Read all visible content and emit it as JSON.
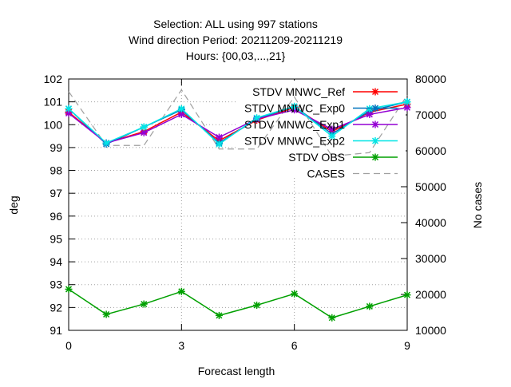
{
  "chart_data": {
    "type": "line",
    "title_lines": [
      "Selection: ALL using   997 stations",
      "Wind direction   Period: 20211209-20211219",
      "Hours: {00,03,...,21}"
    ],
    "xlabel": "Forecast length",
    "ylabel": "deg",
    "y2label": "No cases",
    "xlim": [
      0,
      9
    ],
    "ylim": [
      91,
      102
    ],
    "y2lim": [
      10000,
      80000
    ],
    "xticks": [
      0,
      3,
      6,
      9
    ],
    "yticks": [
      91,
      92,
      93,
      94,
      95,
      96,
      97,
      98,
      99,
      100,
      101,
      102
    ],
    "y2ticks": [
      10000,
      20000,
      30000,
      40000,
      50000,
      60000,
      70000,
      80000
    ],
    "grid": true,
    "legend_position": "top-right",
    "x": [
      0,
      1,
      2,
      3,
      4,
      5,
      6,
      7,
      8,
      9
    ],
    "series": [
      {
        "name": "STDV MNWC_Ref",
        "color": "#ff0000",
        "axis": "left",
        "values": [
          100.55,
          99.2,
          99.7,
          100.55,
          99.3,
          100.2,
          100.75,
          99.7,
          100.55,
          100.9
        ]
      },
      {
        "name": "STDV MNWC_Exp0",
        "color": "#0072bd",
        "axis": "left",
        "values": [
          100.7,
          99.15,
          99.9,
          100.65,
          99.2,
          100.25,
          100.8,
          99.6,
          100.6,
          101.0
        ]
      },
      {
        "name": "STDV MNWC_Exp1",
        "color": "#9400d3",
        "axis": "left",
        "values": [
          100.5,
          99.2,
          99.65,
          100.45,
          99.45,
          100.25,
          100.65,
          99.8,
          100.45,
          100.75
        ]
      },
      {
        "name": "STDV MNWC_Exp2",
        "color": "#00e5e5",
        "axis": "left",
        "values": [
          100.7,
          99.2,
          99.9,
          100.7,
          99.15,
          100.3,
          100.8,
          99.5,
          100.7,
          101.0
        ]
      },
      {
        "name": "STDV OBS",
        "color": "#00a000",
        "axis": "left",
        "values": [
          92.8,
          91.7,
          92.15,
          92.7,
          91.65,
          92.1,
          92.6,
          91.55,
          92.05,
          92.55
        ]
      },
      {
        "name": "CASES",
        "color": "#a0a0a0",
        "axis": "right",
        "dashed": true,
        "values": [
          76500,
          61500,
          61500,
          77000,
          60500,
          60500,
          75000,
          58500,
          59500,
          75500
        ]
      }
    ]
  }
}
